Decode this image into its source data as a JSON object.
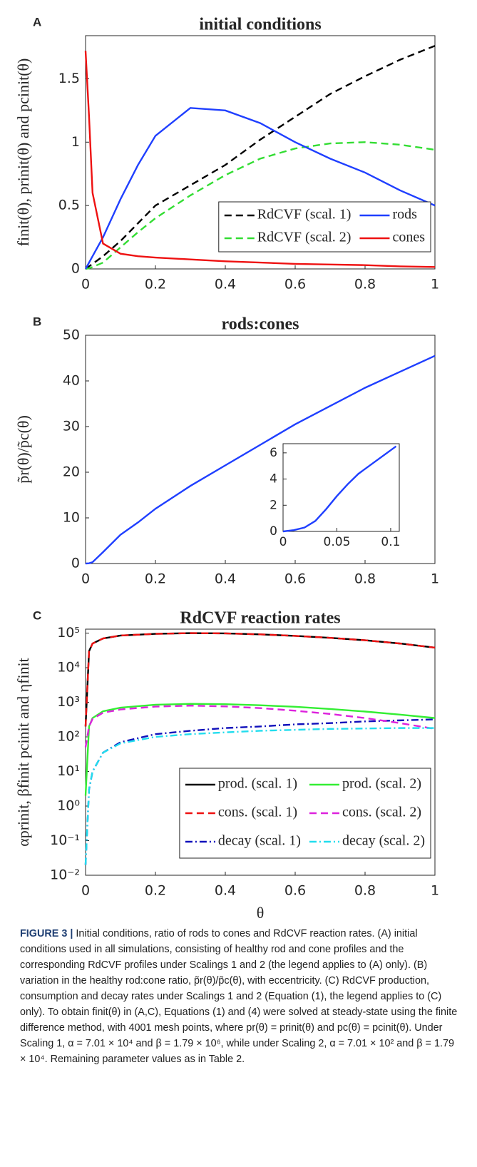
{
  "chart_data": [
    {
      "type": "line",
      "panel": "A",
      "title": "initial conditions",
      "ylabel": "finit(θ), prinit(θ) and pcinit(θ)",
      "x": [
        0,
        0.01,
        0.02,
        0.05,
        0.1,
        0.15,
        0.2,
        0.3,
        0.4,
        0.5,
        0.6,
        0.7,
        0.8,
        0.9,
        1
      ],
      "series": [
        {
          "name": "RdCVF (scal. 1)",
          "color": "#000000",
          "style": "dashed",
          "values": [
            0,
            0.02,
            0.04,
            0.1,
            0.22,
            0.36,
            0.5,
            0.66,
            0.82,
            1.02,
            1.2,
            1.38,
            1.52,
            1.65,
            1.76
          ]
        },
        {
          "name": "RdCVF (scal. 2)",
          "color": "#33dd33",
          "style": "dashed",
          "values": [
            0,
            0.005,
            0.015,
            0.05,
            0.17,
            0.29,
            0.4,
            0.58,
            0.74,
            0.87,
            0.95,
            0.99,
            1.0,
            0.98,
            0.94
          ]
        },
        {
          "name": "rods",
          "color": "#1f3fff",
          "style": "solid",
          "values": [
            0,
            0.05,
            0.1,
            0.25,
            0.55,
            0.82,
            1.05,
            1.27,
            1.25,
            1.15,
            1.0,
            0.87,
            0.76,
            0.62,
            0.5
          ]
        },
        {
          "name": "cones",
          "color": "#ee1111",
          "style": "solid",
          "values": [
            1.72,
            1.2,
            0.6,
            0.2,
            0.12,
            0.1,
            0.09,
            0.075,
            0.06,
            0.05,
            0.04,
            0.035,
            0.03,
            0.02,
            0.015
          ]
        }
      ],
      "xlim": [
        0,
        1
      ],
      "xticks": [
        0,
        0.2,
        0.4,
        0.6,
        0.8,
        1
      ],
      "ylim": [
        0,
        1.84
      ],
      "yticks": [
        0,
        0.5,
        1,
        1.5
      ],
      "legend": "lower right",
      "legend_columns": 2
    },
    {
      "type": "line",
      "panel": "B",
      "title": "rods:cones",
      "ylabel": "p̃r(θ)/p̃c(θ)",
      "x": [
        0,
        0.01,
        0.02,
        0.05,
        0.1,
        0.15,
        0.2,
        0.3,
        0.4,
        0.5,
        0.6,
        0.7,
        0.8,
        0.9,
        1
      ],
      "series": [
        {
          "color": "#1f3fff",
          "style": "solid",
          "values": [
            0,
            0.05,
            0.3,
            2.5,
            6.3,
            9,
            12,
            17,
            21.5,
            26,
            30.5,
            34.5,
            38.5,
            42,
            45.5
          ]
        }
      ],
      "xlim": [
        0,
        1
      ],
      "xticks": [
        0,
        0.2,
        0.4,
        0.6,
        0.8,
        1
      ],
      "ylim": [
        0,
        50
      ],
      "yticks": [
        0,
        10,
        20,
        30,
        40,
        50
      ]
    },
    {
      "type": "line",
      "inset": true,
      "x": [
        0,
        0.01,
        0.02,
        0.03,
        0.04,
        0.05,
        0.06,
        0.07,
        0.08,
        0.09,
        0.1,
        0.105
      ],
      "series": [
        {
          "color": "#1f3fff",
          "style": "solid",
          "values": [
            0,
            0.1,
            0.3,
            0.8,
            1.7,
            2.7,
            3.6,
            4.4,
            5,
            5.6,
            6.2,
            6.5
          ]
        }
      ],
      "xlim": [
        0,
        0.108
      ],
      "xticks": [
        0,
        0.05,
        0.1
      ],
      "ylim": [
        0,
        6.7
      ],
      "yticks": [
        0,
        2,
        4,
        6
      ]
    },
    {
      "type": "line",
      "panel": "C",
      "title": "RdCVF reaction rates",
      "ylabel": "αprinit, βfinit pcinit and ηfinit",
      "xlabel": "θ",
      "log_y": true,
      "x": [
        0,
        0.01,
        0.02,
        0.05,
        0.1,
        0.2,
        0.3,
        0.4,
        0.5,
        0.6,
        0.7,
        0.8,
        0.9,
        1
      ],
      "series": [
        {
          "name": "prod. (scal. 1)",
          "color": "#000000",
          "style": "solid",
          "values": [
            200,
            30000,
            50000,
            70000,
            85000,
            95000,
            100000,
            98000,
            92000,
            83000,
            73000,
            62000,
            50000,
            38000
          ]
        },
        {
          "name": "cons. (scal. 1)",
          "color": "#ee1111",
          "style": "dashed",
          "values": [
            200,
            30000,
            50000,
            70000,
            85000,
            95000,
            100000,
            98000,
            92000,
            83000,
            73000,
            62000,
            50000,
            38000
          ]
        },
        {
          "name": "decay (scal. 1)",
          "color": "#1010bb",
          "style": "dashdot",
          "values": [
            0.02,
            3,
            10,
            35,
            70,
            120,
            150,
            180,
            200,
            230,
            250,
            280,
            300,
            320
          ]
        },
        {
          "name": "prod. (scal. 2)",
          "color": "#33ee33",
          "style": "solid",
          "values": [
            2,
            200,
            350,
            550,
            700,
            850,
            900,
            880,
            820,
            740,
            640,
            540,
            440,
            350
          ]
        },
        {
          "name": "cons. (scal. 2)",
          "color": "#dd22dd",
          "style": "dashed",
          "values": [
            50,
            200,
            330,
            500,
            620,
            750,
            800,
            760,
            680,
            570,
            460,
            350,
            250,
            170
          ]
        },
        {
          "name": "decay (scal. 2)",
          "color": "#22ddee",
          "style": "dashdot",
          "values": [
            0.02,
            3,
            10,
            35,
            65,
            100,
            120,
            135,
            150,
            160,
            170,
            175,
            180,
            180
          ]
        }
      ],
      "xlim": [
        0,
        1
      ],
      "xticks": [
        0,
        0.2,
        0.4,
        0.6,
        0.8,
        1
      ],
      "ylim": [
        0.01,
        130000
      ],
      "yticks": [
        {
          "value": 0.01,
          "label": "10⁻²"
        },
        {
          "value": 0.1,
          "label": "10⁻¹"
        },
        {
          "value": 1,
          "label": "10⁰"
        },
        {
          "value": 10,
          "label": "10¹"
        },
        {
          "value": 100,
          "label": "10²"
        },
        {
          "value": 1000,
          "label": "10³"
        },
        {
          "value": 10000,
          "label": "10⁴"
        },
        {
          "value": 100000,
          "label": "10⁵"
        }
      ],
      "legend": "lower right",
      "legend_columns": 2
    }
  ],
  "caption": {
    "label": "FIGURE 3 |",
    "text": "Initial conditions, ratio of rods to cones and RdCVF reaction rates. (A) initial conditions used in all simulations, consisting of healthy rod and cone profiles and the corresponding RdCVF profiles under Scalings 1 and 2 (the legend applies to (A) only). (B) variation in the healthy rod:cone ratio, p̃r(θ)/p̃c(θ), with eccentricity. (C) RdCVF production, consumption and decay rates under Scalings 1 and 2 (Equation (1), the legend applies to (C) only). To obtain finit(θ) in (A,C), Equations (1) and (4) were solved at steady-state using the finite difference method, with 4001 mesh points, where pr(θ) = prinit(θ) and pc(θ) = pcinit(θ). Under Scaling 1, α = 7.01 × 10⁴ and β = 1.79 × 10⁶, while under Scaling 2, α = 7.01 × 10² and β = 1.79 × 10⁴. Remaining parameter values as in Table 2."
  }
}
